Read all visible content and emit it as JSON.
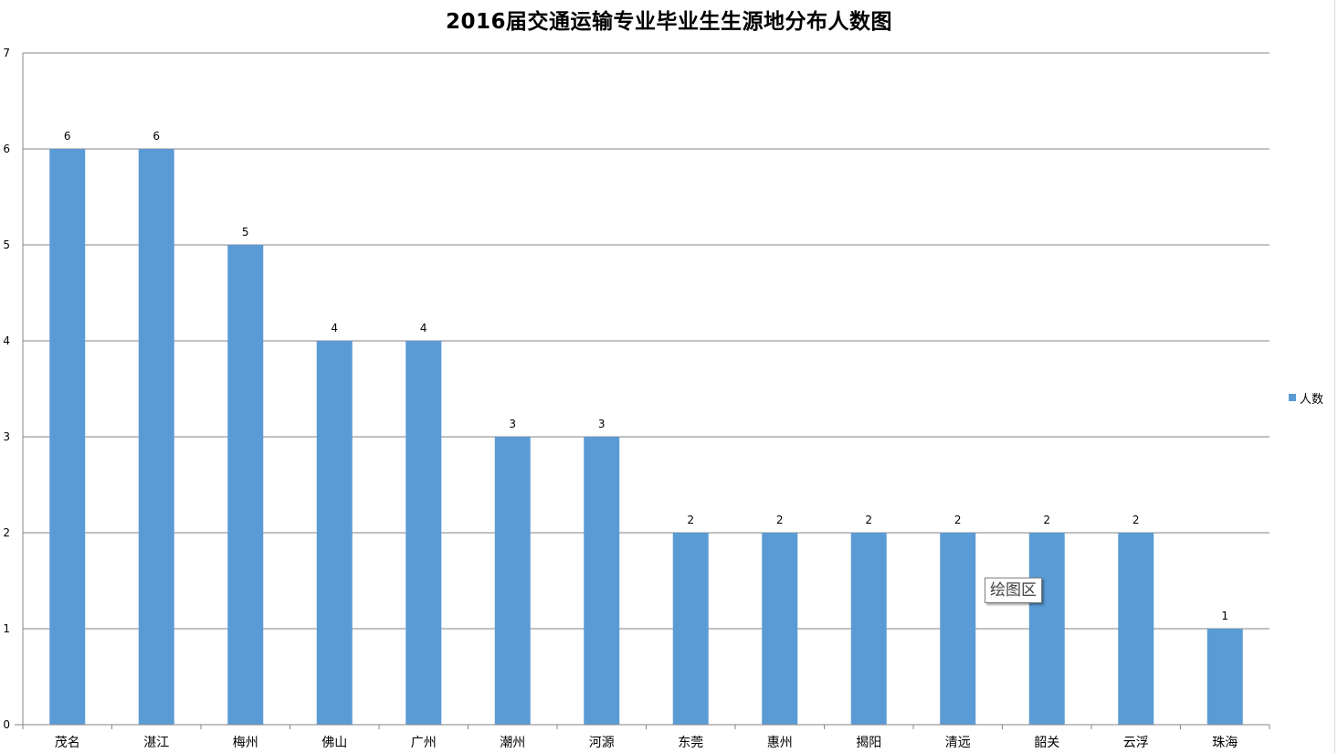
{
  "chart_data": {
    "type": "bar",
    "title": "2016届交通运输专业毕业生生源地分布人数图",
    "xlabel": "",
    "ylabel": "",
    "categories": [
      "茂名",
      "湛江",
      "梅州",
      "佛山",
      "广州",
      "潮州",
      "河源",
      "东莞",
      "惠州",
      "揭阳",
      "清远",
      "韶关",
      "云浮",
      "珠海"
    ],
    "series": [
      {
        "name": "人数",
        "values": [
          6,
          6,
          5,
          4,
          4,
          3,
          3,
          2,
          2,
          2,
          2,
          2,
          2,
          1
        ],
        "color": "#5b9bd5"
      }
    ],
    "ylim": [
      0,
      7
    ],
    "yticks": [
      0,
      1,
      2,
      3,
      4,
      5,
      6,
      7
    ],
    "grid": true,
    "data_labels": true,
    "legend_position": "right"
  },
  "tooltip": {
    "text": "绘图区"
  },
  "colors": {
    "bar": "#5b9bd5",
    "grid": "#868686",
    "axis": "#868686"
  }
}
